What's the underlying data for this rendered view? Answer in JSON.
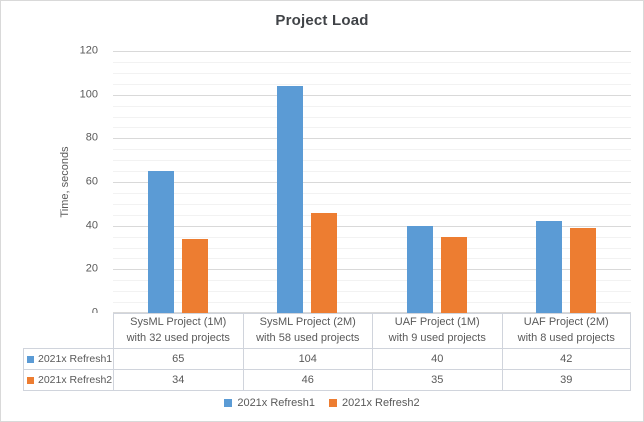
{
  "chart_data": {
    "type": "bar",
    "title": "Project Load",
    "ylabel": "Time, seconds",
    "xlabel": "",
    "ylim": [
      0,
      120
    ],
    "yticks": [
      0,
      20,
      40,
      60,
      80,
      100,
      120
    ],
    "minor_tick_step": 5,
    "grid": true,
    "legend_position": "bottom",
    "has_data_table": true,
    "categories": [
      "SysML Project (1M)\nwith 32 used projects",
      "SysML Project (2M)\nwith 58 used projects",
      "UAF Project (1M)\nwith 9 used projects",
      "UAF Project (2M)\nwith 8 used projects"
    ],
    "series": [
      {
        "name": "2021x Refresh1",
        "color": "#5B9BD5",
        "values": [
          65,
          104,
          40,
          42
        ]
      },
      {
        "name": "2021x Refresh2",
        "color": "#ED7D31",
        "values": [
          34,
          46,
          35,
          39
        ]
      }
    ]
  },
  "colors": {
    "accent_blue": "#5B9BD5",
    "accent_orange": "#ED7D31",
    "title_text": "#404347",
    "axis_text": "#595959",
    "major_gridline": "#D9D9D9",
    "minor_gridline": "#F2F2F2",
    "table_border": "#D0D4DC",
    "chart_border": "#D9D9D9",
    "background": "#FFFFFF"
  }
}
